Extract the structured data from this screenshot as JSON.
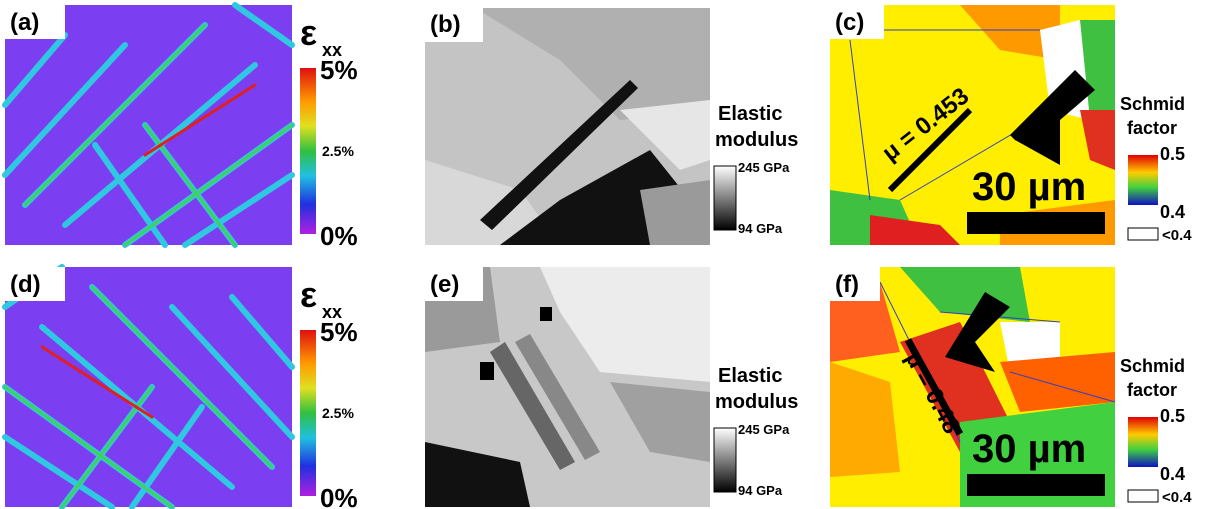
{
  "panels": [
    {
      "label": "(a)",
      "colorbar": {
        "symbol": "ε",
        "subscript": "xx",
        "ticks": [
          "5%",
          "2.5%",
          "0%"
        ]
      }
    },
    {
      "label": "(b)",
      "legend": {
        "title_lines": [
          "Elastic",
          "modulus"
        ],
        "max": "245 GPa",
        "min": "94 GPa"
      }
    },
    {
      "label": "(c)",
      "annotation": "μ = 0.453",
      "scale_bar": "30 µm",
      "legend": {
        "title_lines": [
          "Schmid",
          "factor"
        ],
        "max": "0.5",
        "min": "0.4",
        "below": "<0.4"
      }
    },
    {
      "label": "(d)",
      "colorbar": {
        "symbol": "ε",
        "subscript": "xx",
        "ticks": [
          "5%",
          "2.5%",
          "0%"
        ]
      }
    },
    {
      "label": "(e)",
      "legend": {
        "title_lines": [
          "Elastic",
          "modulus"
        ],
        "max": "245 GPa",
        "min": "94 GPa"
      }
    },
    {
      "label": "(f)",
      "annotation": "μ = 0.48",
      "scale_bar": "30 µm",
      "legend": {
        "title_lines": [
          "Schmid",
          "factor"
        ],
        "max": "0.5",
        "min": "0.4",
        "below": "<0.4"
      }
    }
  ]
}
